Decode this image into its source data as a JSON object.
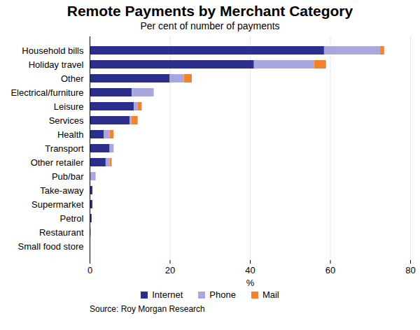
{
  "chart_data": {
    "type": "bar",
    "title": "Remote Payments by Merchant Category",
    "subtitle": "Per cent of number of payments",
    "source": "Source: Roy Morgan Research",
    "orientation": "horizontal",
    "stacked": true,
    "grid": true,
    "legend": "bottom",
    "x_label": "%",
    "categories": [
      "Household bills",
      "Holiday travel",
      "Other",
      "Electrical/furniture",
      "Leisure",
      "Services",
      "Health",
      "Transport",
      "Other retailer",
      "Pub/bar",
      "Take-away",
      "Supermarket",
      "Petrol",
      "Restaurant",
      "Small food store"
    ],
    "series": [
      {
        "name": "Internet",
        "color": "#2b2e8c",
        "values": [
          58.5,
          41,
          20,
          10.5,
          11,
          10,
          3.5,
          5,
          4,
          0,
          0.7,
          0.7,
          0.5,
          0,
          0
        ]
      },
      {
        "name": "Phone",
        "color": "#a9a8de",
        "values": [
          14,
          15,
          3.5,
          5.5,
          1,
          0.5,
          1.5,
          1,
          1,
          1.5,
          0,
          0,
          0,
          0,
          0
        ]
      },
      {
        "name": "Mail",
        "color": "#f5822a",
        "values": [
          1,
          3,
          2,
          0,
          1,
          1.5,
          1,
          0,
          0.5,
          0,
          0,
          0,
          0,
          0.3,
          0
        ]
      }
    ],
    "xlim": [
      0,
      80
    ],
    "xticks": [
      0,
      20,
      40,
      60,
      80
    ]
  }
}
